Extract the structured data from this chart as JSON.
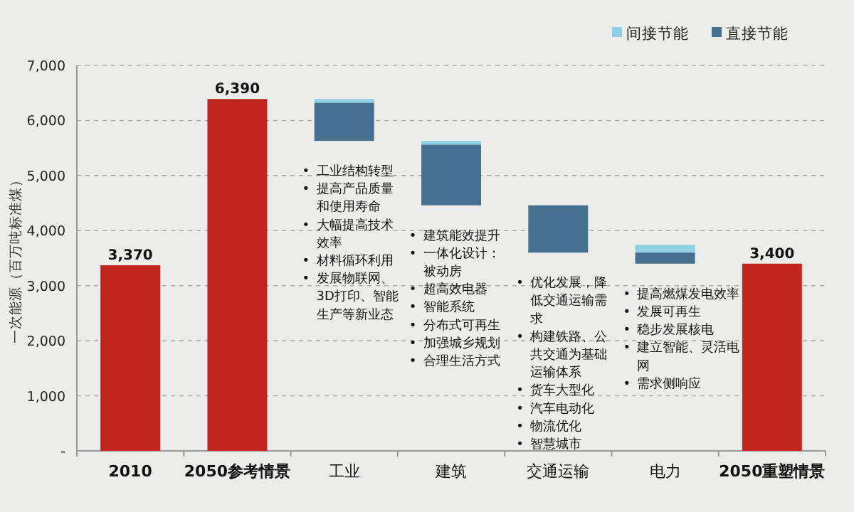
{
  "chart_data": {
    "type": "bar",
    "ylabel": "一次能源（百万吨标准煤）",
    "categories": [
      "2010",
      "2050参考情景",
      "工业",
      "建筑",
      "交通运输",
      "电力",
      "2050重塑情景"
    ],
    "series": [
      {
        "color": "#c0261e",
        "values": [
          3370,
          6390,
          null,
          null,
          null,
          null,
          3400
        ],
        "base": [
          0,
          0,
          null,
          null,
          null,
          null,
          0
        ],
        "value_labels": [
          "3,370",
          "6,390",
          null,
          null,
          null,
          null,
          "3,400"
        ]
      },
      {
        "name": "间接节能",
        "color": "#8fd0e4",
        "values": [
          null,
          null,
          70,
          70,
          null,
          140,
          null
        ],
        "base": [
          null,
          null,
          6320,
          5560,
          null,
          3600,
          null
        ]
      },
      {
        "name": "直接节能",
        "color": "#47708f",
        "values": [
          null,
          null,
          690,
          1100,
          860,
          200,
          null
        ],
        "base": [
          null,
          null,
          5630,
          4460,
          3600,
          3400,
          null
        ]
      }
    ],
    "ylim": [
      0,
      7000
    ],
    "yticks": [
      {
        "value": 0,
        "label": "-"
      },
      {
        "value": 1000,
        "label": "1,000"
      },
      {
        "value": 2000,
        "label": "2,000"
      },
      {
        "value": 3000,
        "label": "3,000"
      },
      {
        "value": 4000,
        "label": "4,000"
      },
      {
        "value": 5000,
        "label": "5,000"
      },
      {
        "value": 6000,
        "label": "6,000"
      },
      {
        "value": 7000,
        "label": "7,000"
      }
    ],
    "grid": "y",
    "legend": "top right",
    "annotations": [
      "• 工业结构转型\n• 提高产品质量和使用寿命\n• 大幅提高技术效率\n• 材料循环利用\n• 发展物联网、3D打印、智能生产等新业态",
      "• 建筑能效提升\n• 一体化设计：被动房\n• 超高效电器\n• 智能系统\n• 分布式可再生\n• 加强城乡规划\n• 合理生活方式",
      "• 优化发展，降低交通运输需求\n• 构建铁路、公共交通为基础运输体系\n• 货车大型化\n• 汽车电动化\n• 物流优化\n• 智慧城市",
      "• 提高燃煤发电效率\n• 发展可再生\n• 稳步发展核电\n• 建立智能、灵活电网\n• 需求侧响应"
    ]
  }
}
